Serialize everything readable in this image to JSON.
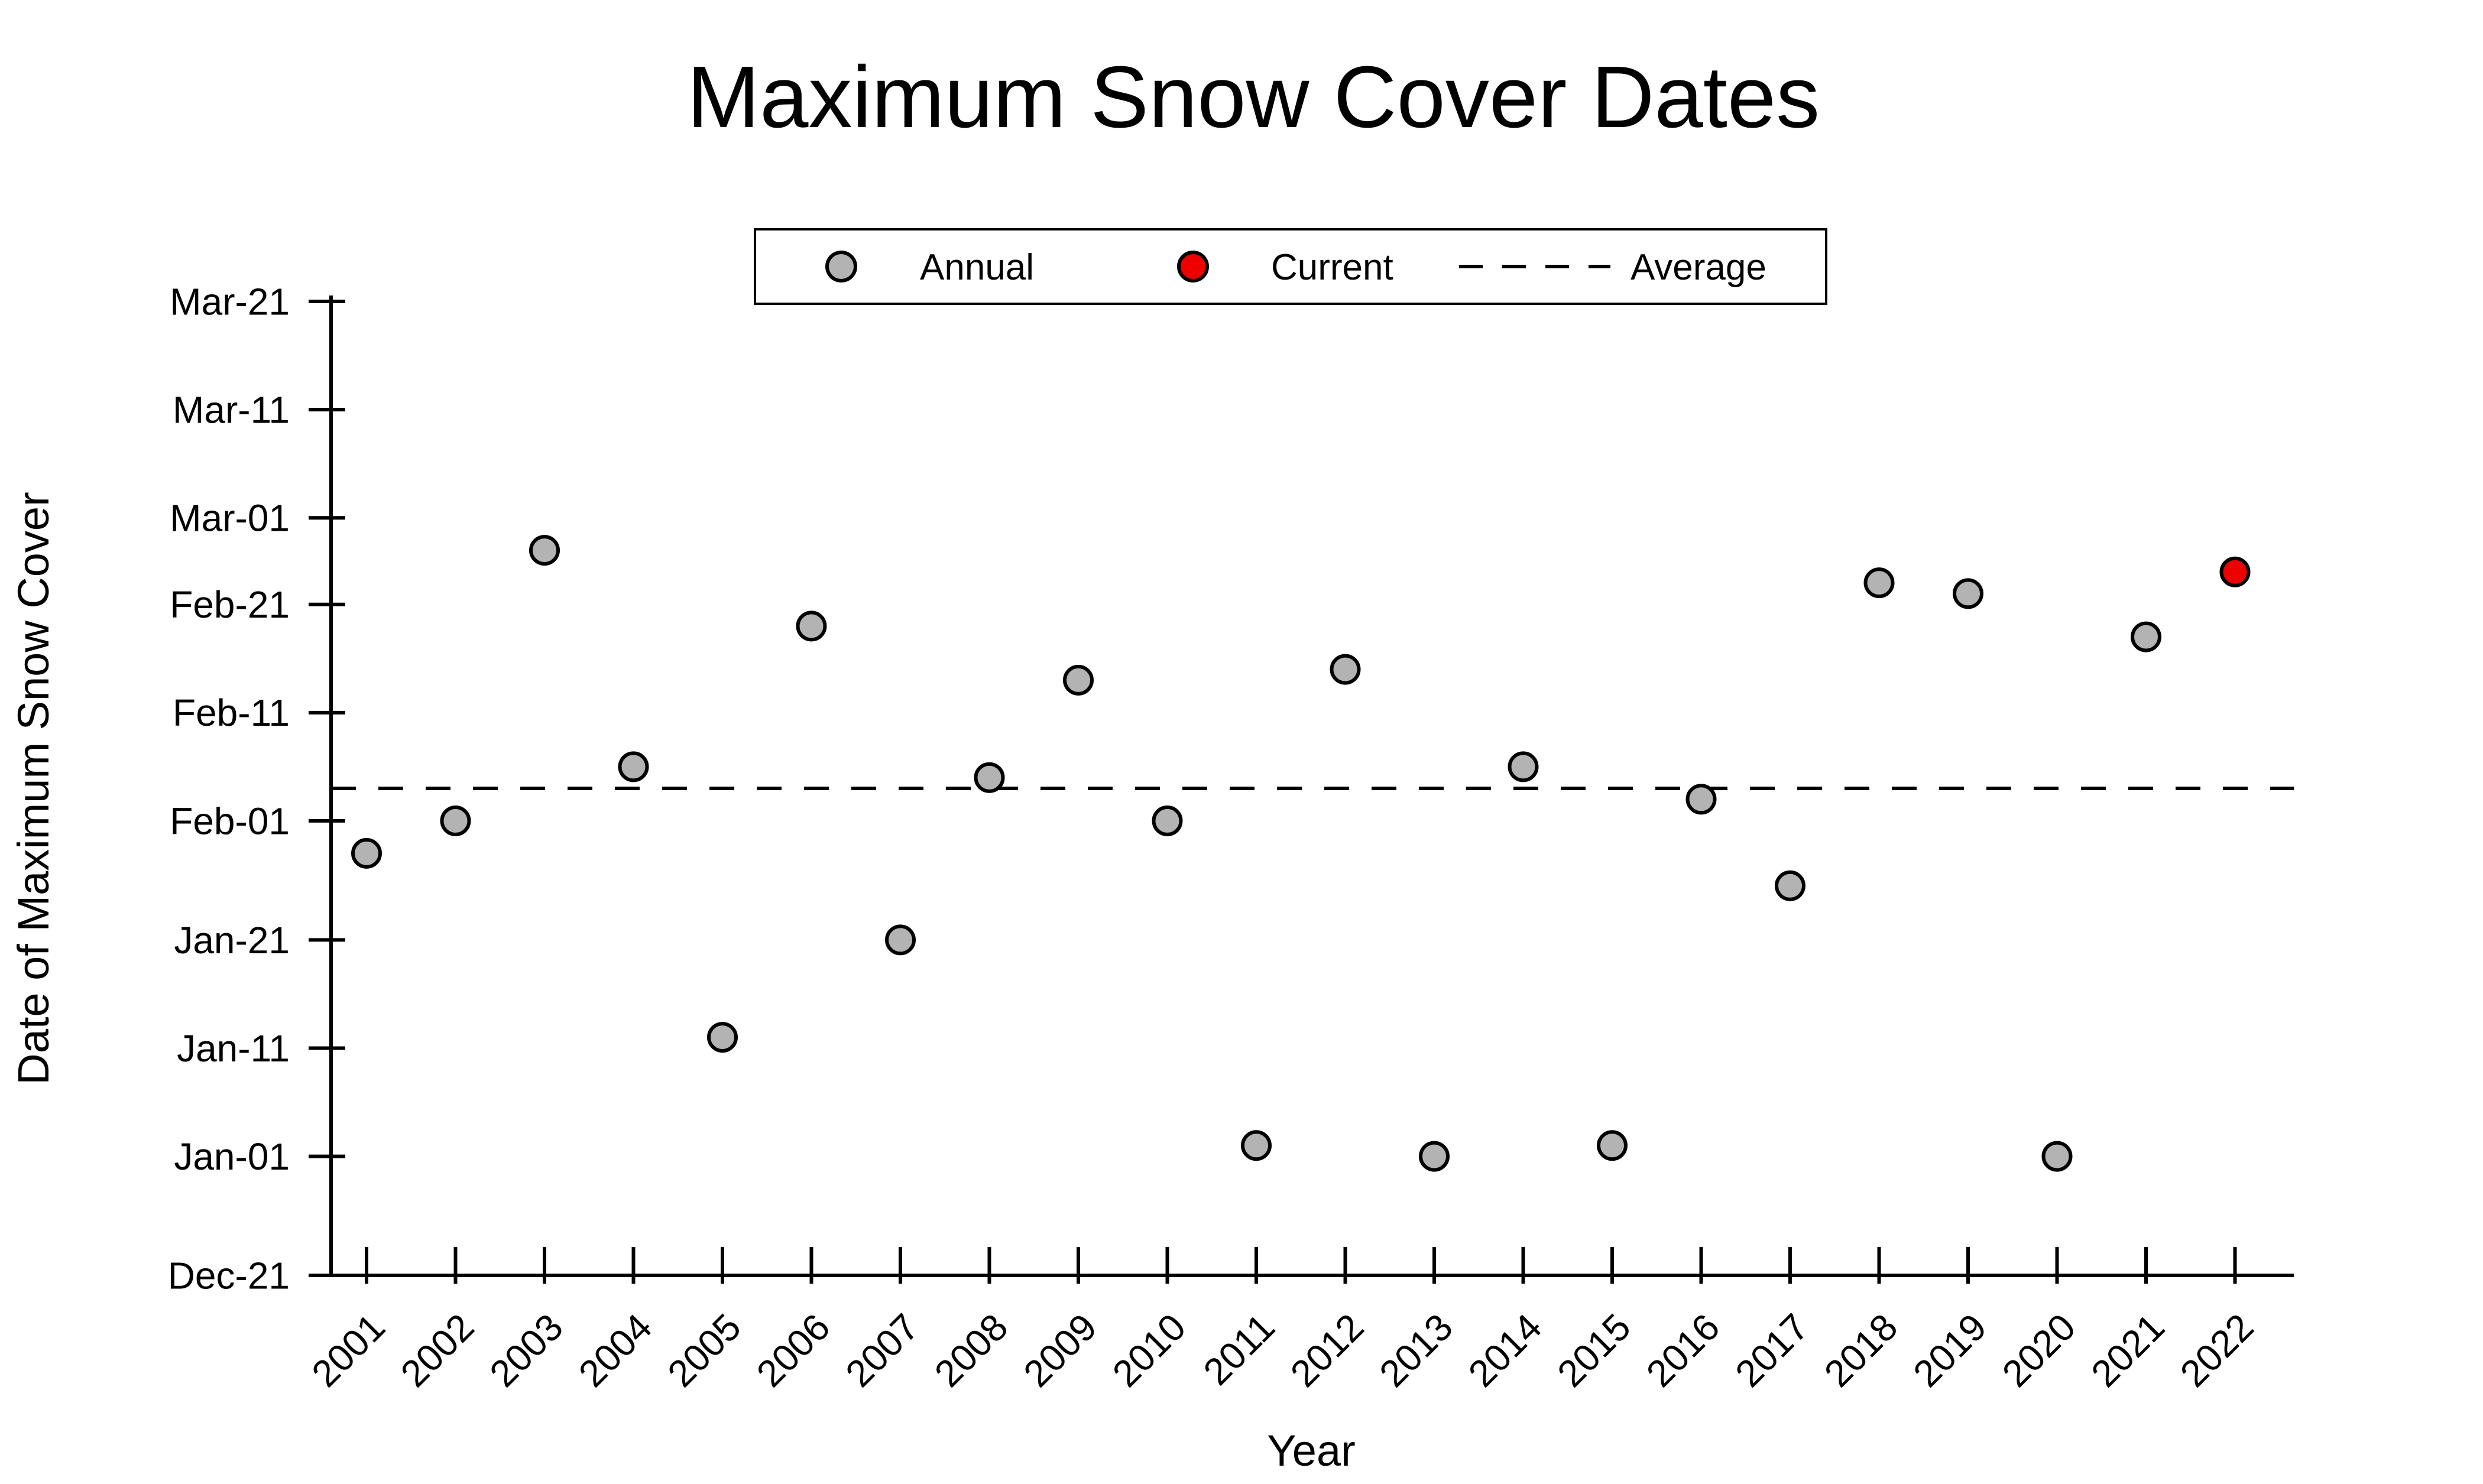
{
  "title": "Maximum Snow Cover Dates",
  "legend": {
    "items": [
      {
        "label": "Annual",
        "marker": "circle",
        "color": "#b3b3b3"
      },
      {
        "label": "Current",
        "marker": "circle",
        "color": "#ee0000"
      },
      {
        "label": "Average",
        "marker": "dashed-line",
        "color": "#000000"
      }
    ]
  },
  "chart_data": {
    "type": "scatter",
    "title": "Maximum Snow Cover Dates",
    "xlabel": "Year",
    "ylabel": "Date of Maximum Snow Cover",
    "x_ticks": [
      2001,
      2002,
      2003,
      2004,
      2005,
      2006,
      2007,
      2008,
      2009,
      2010,
      2011,
      2012,
      2013,
      2014,
      2015,
      2016,
      2017,
      2018,
      2019,
      2020,
      2021,
      2022
    ],
    "y_ticks": [
      "Dec-21",
      "Jan-01",
      "Jan-11",
      "Jan-21",
      "Feb-01",
      "Feb-11",
      "Feb-21",
      "Mar-01",
      "Mar-11",
      "Mar-21"
    ],
    "y_axis_range": [
      "Dec-21",
      "Mar-21"
    ],
    "grid": false,
    "legend_position": "top-center",
    "series": [
      {
        "name": "Annual",
        "marker": "circle",
        "fill": "#b3b3b3",
        "edge": "#000000",
        "points": [
          {
            "year": 2001,
            "date": "Jan-29"
          },
          {
            "year": 2002,
            "date": "Feb-01"
          },
          {
            "year": 2003,
            "date": "Feb-26"
          },
          {
            "year": 2004,
            "date": "Feb-06"
          },
          {
            "year": 2005,
            "date": "Jan-12"
          },
          {
            "year": 2006,
            "date": "Feb-19"
          },
          {
            "year": 2007,
            "date": "Jan-21"
          },
          {
            "year": 2008,
            "date": "Feb-05"
          },
          {
            "year": 2009,
            "date": "Feb-14"
          },
          {
            "year": 2010,
            "date": "Feb-01"
          },
          {
            "year": 2011,
            "date": "Jan-02"
          },
          {
            "year": 2012,
            "date": "Feb-15"
          },
          {
            "year": 2013,
            "date": "Jan-01"
          },
          {
            "year": 2014,
            "date": "Feb-06"
          },
          {
            "year": 2015,
            "date": "Jan-02"
          },
          {
            "year": 2016,
            "date": "Feb-03"
          },
          {
            "year": 2017,
            "date": "Jan-26"
          },
          {
            "year": 2018,
            "date": "Feb-23"
          },
          {
            "year": 2019,
            "date": "Feb-22"
          },
          {
            "year": 2020,
            "date": "Jan-01"
          },
          {
            "year": 2021,
            "date": "Feb-18"
          }
        ]
      },
      {
        "name": "Current",
        "marker": "circle",
        "fill": "#ee0000",
        "edge": "#000000",
        "points": [
          {
            "year": 2022,
            "date": "Feb-24"
          }
        ]
      }
    ],
    "average_line": {
      "label": "Average",
      "date": "Feb-04",
      "style": "dashed",
      "color": "#000000"
    }
  }
}
